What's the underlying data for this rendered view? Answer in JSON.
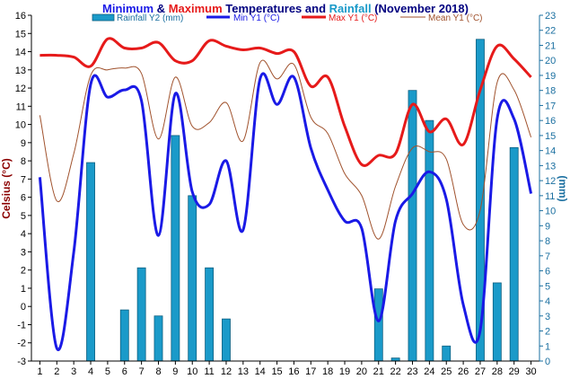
{
  "title": {
    "part1": "Minimum",
    "part2": " & ",
    "part3": "Maximum",
    "part4": " Temperatures and ",
    "part5": "Rainfall",
    "part6": " (November 2018)"
  },
  "colors": {
    "min": "#1a1ae6",
    "max": "#e61a1a",
    "mean": "#a0522d",
    "rain_fill": "#1a9ac9",
    "rain_stroke": "#0d5f80",
    "left_axis_label": "#8b0000",
    "right_axis_label": "#1a6fa0",
    "title_dark": "#000080",
    "title_min": "#1a1ae6",
    "title_max": "#e61a1a",
    "title_rain": "#1a9ac9"
  },
  "chart_data": {
    "type": "line",
    "x": [
      1,
      2,
      3,
      4,
      5,
      6,
      7,
      8,
      9,
      10,
      11,
      12,
      13,
      14,
      15,
      16,
      17,
      18,
      19,
      20,
      21,
      22,
      23,
      24,
      25,
      26,
      27,
      28,
      29,
      30
    ],
    "xlabel": "",
    "ylabel": "Celsius (°C)",
    "y2label": "(mm)",
    "ylim": [
      -3,
      16
    ],
    "y2lim": [
      0,
      23
    ],
    "xticks": [
      "1",
      "2",
      "3",
      "4",
      "5",
      "6",
      "7",
      "8",
      "9",
      "10",
      "11",
      "12",
      "13",
      "14",
      "15",
      "16",
      "17",
      "18",
      "19",
      "20",
      "21",
      "22",
      "23",
      "24",
      "25",
      "26",
      "27",
      "28",
      "29",
      "30"
    ],
    "yticks": [
      "-3",
      "-2",
      "-1",
      "0",
      "1",
      "2",
      "3",
      "4",
      "5",
      "6",
      "7",
      "8",
      "9",
      "10",
      "11",
      "12",
      "13",
      "14",
      "15",
      "16"
    ],
    "y2ticks": [
      "0",
      "1",
      "2",
      "3",
      "4",
      "5",
      "6",
      "7",
      "8",
      "9",
      "10",
      "11",
      "12",
      "13",
      "14",
      "15",
      "16",
      "17",
      "18",
      "19",
      "20",
      "21",
      "22",
      "23"
    ],
    "grid": false,
    "legend": "top-center",
    "series": [
      {
        "name": "Rainfall Y2 (mm)",
        "type": "bar",
        "axis": "y2",
        "values": [
          0,
          0,
          0,
          13.2,
          0,
          3.4,
          6.2,
          3.0,
          15.0,
          11.0,
          6.2,
          2.8,
          0,
          0,
          0,
          0,
          0,
          0,
          0,
          0,
          4.8,
          0.2,
          18.0,
          16.0,
          1.0,
          0,
          21.4,
          5.2,
          14.2,
          0
        ]
      },
      {
        "name": "Min Y1 (°C)",
        "type": "line",
        "axis": "y1",
        "values": [
          7.1,
          -2.3,
          3.0,
          12.2,
          11.5,
          11.9,
          11.3,
          3.9,
          11.7,
          6.3,
          5.6,
          8.0,
          4.2,
          12.5,
          11.1,
          12.6,
          8.7,
          6.4,
          4.7,
          4.3,
          -0.8,
          4.7,
          6.2,
          7.4,
          5.9,
          0.1,
          -1.3,
          10.3,
          10.3,
          6.2
        ]
      },
      {
        "name": "Max Y1 (°C)",
        "type": "line",
        "axis": "y1",
        "values": [
          13.8,
          13.8,
          13.7,
          13.2,
          14.7,
          14.2,
          14.2,
          14.5,
          13.5,
          13.5,
          14.6,
          14.3,
          14.1,
          14.2,
          13.9,
          14.0,
          12.1,
          12.6,
          9.9,
          7.8,
          8.3,
          8.4,
          11.1,
          9.6,
          10.3,
          8.9,
          11.9,
          14.3,
          13.6,
          12.6
        ]
      },
      {
        "name": "Mean Y1 (°C)",
        "type": "line",
        "axis": "y1",
        "values": [
          10.5,
          5.8,
          8.4,
          12.7,
          13.0,
          13.1,
          12.8,
          9.2,
          12.6,
          9.9,
          10.1,
          11.2,
          9.1,
          13.4,
          12.5,
          13.3,
          10.4,
          9.5,
          7.3,
          6.1,
          3.7,
          6.6,
          8.7,
          8.5,
          8.1,
          4.5,
          5.3,
          12.3,
          11.9,
          9.3
        ]
      }
    ]
  }
}
